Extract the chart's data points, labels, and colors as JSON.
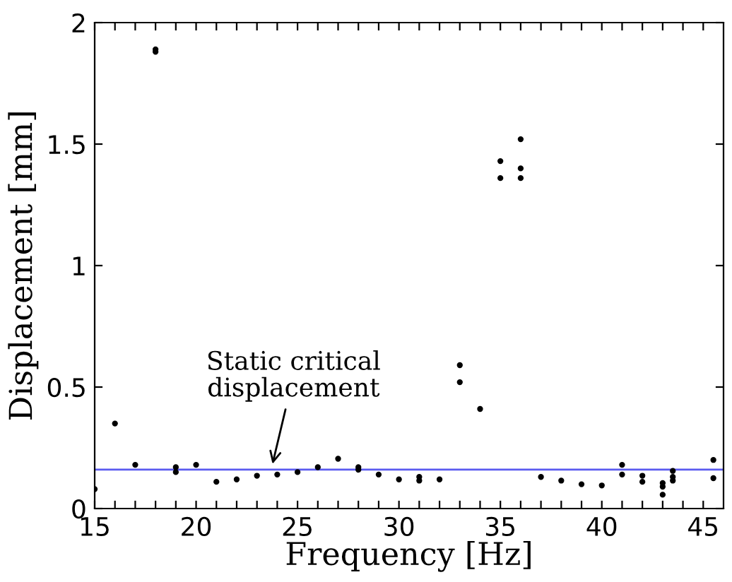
{
  "chart_data": {
    "type": "scatter",
    "xlabel": "Frequency [Hz]",
    "ylabel": "Displacement [mm]",
    "xlim": [
      15,
      46
    ],
    "ylim": [
      0,
      2
    ],
    "xticks": [
      15,
      {
        "value": 16,
        "label": null
      },
      {
        "value": 17,
        "label": null
      },
      {
        "value": 18,
        "label": null
      },
      {
        "value": 19,
        "label": null
      },
      20,
      {
        "value": 21,
        "label": null
      },
      {
        "value": 22,
        "label": null
      },
      {
        "value": 23,
        "label": null
      },
      {
        "value": 24,
        "label": null
      },
      25,
      {
        "value": 26,
        "label": null
      },
      {
        "value": 27,
        "label": null
      },
      {
        "value": 28,
        "label": null
      },
      {
        "value": 29,
        "label": null
      },
      30,
      {
        "value": 31,
        "label": null
      },
      {
        "value": 32,
        "label": null
      },
      {
        "value": 33,
        "label": null
      },
      {
        "value": 34,
        "label": null
      },
      35,
      {
        "value": 36,
        "label": null
      },
      {
        "value": 37,
        "label": null
      },
      {
        "value": 38,
        "label": null
      },
      {
        "value": 39,
        "label": null
      },
      40,
      {
        "value": 41,
        "label": null
      },
      {
        "value": 42,
        "label": null
      },
      {
        "value": 43,
        "label": null
      },
      {
        "value": 44,
        "label": null
      },
      45
    ],
    "yticks": [
      0,
      0.5,
      1,
      1.5,
      2
    ],
    "marker": "circle",
    "grid": false,
    "series": [
      {
        "color": "#000000",
        "x": [
          15,
          16,
          17,
          18,
          18,
          19,
          19,
          20,
          21,
          22,
          23,
          24,
          25,
          26,
          27,
          28,
          28,
          29,
          30,
          31,
          31,
          32,
          33,
          33,
          34,
          35,
          35,
          36,
          36,
          36,
          37,
          38,
          39,
          40,
          41,
          41,
          42,
          42,
          43,
          43,
          43,
          43.5,
          43.5,
          43.5,
          45.5,
          45.5
        ],
        "values": [
          0.08,
          0.35,
          0.18,
          1.88,
          1.89,
          0.17,
          0.15,
          0.18,
          0.11,
          0.12,
          0.135,
          0.14,
          0.15,
          0.17,
          0.205,
          0.17,
          0.16,
          0.14,
          0.12,
          0.13,
          0.115,
          0.12,
          0.59,
          0.52,
          0.41,
          1.43,
          1.36,
          1.52,
          1.4,
          1.36,
          0.13,
          0.115,
          0.1,
          0.095,
          0.18,
          0.14,
          0.135,
          0.11,
          0.105,
          0.09,
          0.057,
          0.155,
          0.13,
          0.115,
          0.2,
          0.125
        ]
      }
    ],
    "ref_lines": [
      {
        "axis": "y",
        "value": 0.16,
        "color": "#5b5bf0",
        "line_style": "solid"
      }
    ],
    "annotations": [
      {
        "text": "Static critical\ndisplacement",
        "x": 23.7,
        "y": 0.16
      }
    ]
  }
}
